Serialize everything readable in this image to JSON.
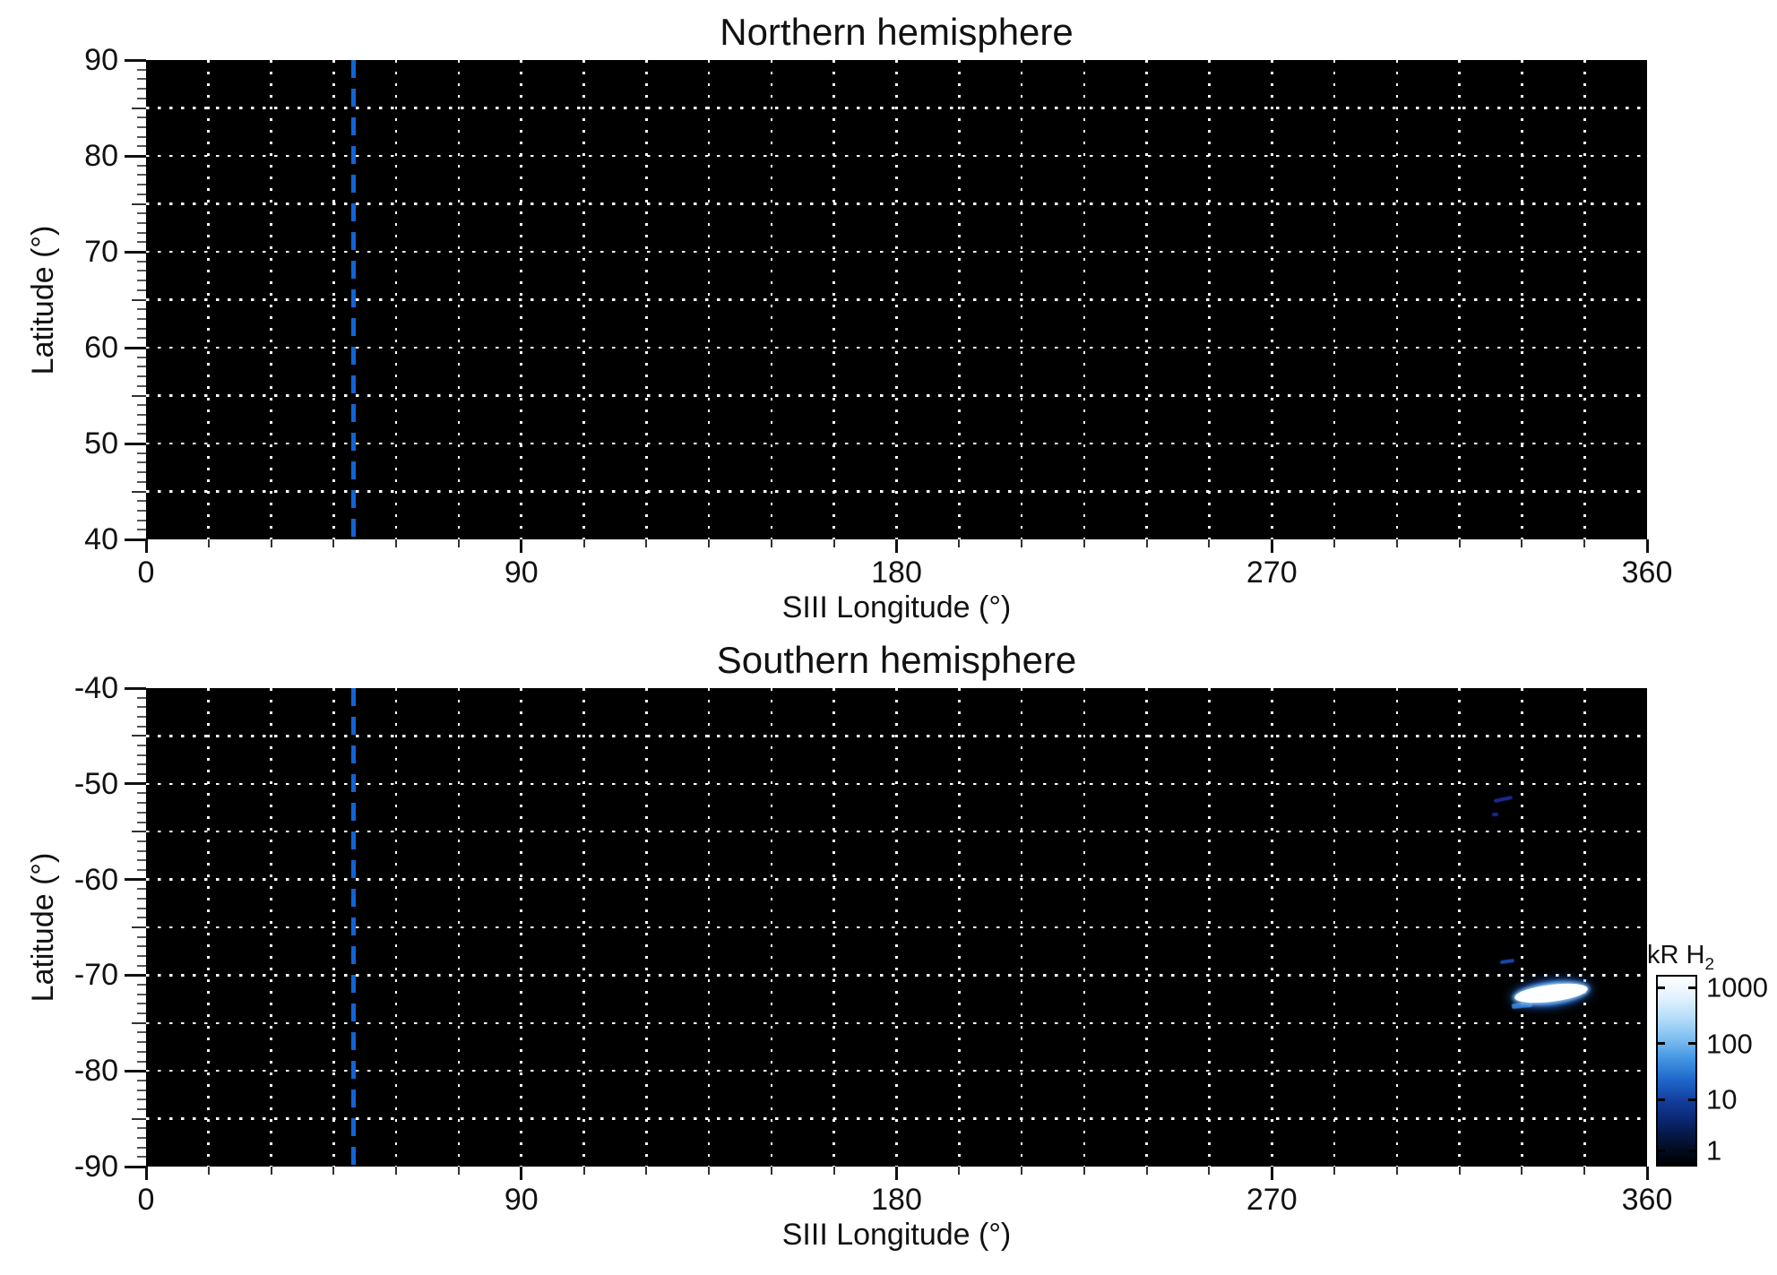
{
  "chart_data": {
    "type": "heatmap",
    "description": "Two-panel polar emission map on black background with white dotted graticule, dashed blue reference meridian, and a logarithmic blue-white intensity colorbar",
    "panels": [
      {
        "title": "Northern hemisphere",
        "xlabel": "SIII Longitude (°)",
        "ylabel": "Latitude (°)",
        "xlim": [
          0,
          360
        ],
        "ylim": [
          40,
          90
        ],
        "xticks": [
          0,
          90,
          180,
          270,
          360
        ],
        "yticks": [
          90,
          80,
          70,
          60,
          50,
          40
        ],
        "grid": {
          "lon_step_deg": 15,
          "lat_step_deg": 5,
          "style": "dotted",
          "color": "#ffffff"
        },
        "background": "#000000",
        "background_value_kR": 0,
        "reference_line": {
          "longitude_deg": 49.7,
          "style": "dashed",
          "color": "#1263d4"
        },
        "features": []
      },
      {
        "title": "Southern hemisphere",
        "xlabel": "SIII Longitude (°)",
        "ylabel": "Latitude (°)",
        "xlim": [
          0,
          360
        ],
        "ylim": [
          -90,
          -40
        ],
        "xticks": [
          0,
          90,
          180,
          270,
          360
        ],
        "yticks": [
          -40,
          -50,
          -60,
          -70,
          -80,
          -90
        ],
        "grid": {
          "lon_step_deg": 15,
          "lat_step_deg": 5,
          "style": "dotted",
          "color": "#ffffff"
        },
        "background": "#000000",
        "background_value_kR": 0,
        "reference_line": {
          "longitude_deg": 49.7,
          "style": "dashed",
          "color": "#1263d4"
        },
        "features": [
          {
            "name": "main auroral arc",
            "kind": "bright-arc",
            "lon_deg": 337.0,
            "lat_deg": -71.9,
            "lon_extent_deg": 19.5,
            "lat_extent_deg": 3.2,
            "rotation_deg": -7,
            "peak_kR": 1000
          },
          {
            "name": "arc lower-left blue tail",
            "kind": "faint-streak",
            "lon_deg": 330.0,
            "lat_deg": -73.2,
            "lon_extent_deg": 5.0,
            "lat_extent_deg": 0.6,
            "rotation_deg": -6,
            "color": "#3f8fe0"
          },
          {
            "name": "faint streak above arc",
            "kind": "faint-streak",
            "lon_deg": 326.5,
            "lat_deg": -68.6,
            "lon_extent_deg": 3.5,
            "lat_extent_deg": 0.4,
            "rotation_deg": -8,
            "color": "#1a50c0"
          },
          {
            "name": "faint emission patch a",
            "kind": "faint-streak",
            "lon_deg": 325.5,
            "lat_deg": -51.6,
            "lon_extent_deg": 4.5,
            "lat_extent_deg": 0.4,
            "rotation_deg": -12,
            "color": "#1e2fa8"
          },
          {
            "name": "faint emission patch b",
            "kind": "faint-streak",
            "lon_deg": 323.6,
            "lat_deg": -53.2,
            "lon_extent_deg": 1.6,
            "lat_extent_deg": 0.35,
            "rotation_deg": 0,
            "color": "#1e2fa8"
          }
        ]
      }
    ],
    "colorbar": {
      "label": "kR H",
      "label_sub": "2",
      "scale": "log",
      "ticks": [
        "1000",
        "100",
        "10",
        "1"
      ],
      "gradient_top_to_bottom": [
        "#ffffff",
        "#e2f2fe",
        "#b5dcf9",
        "#7cbdf0",
        "#3f92e2",
        "#1e64c8",
        "#123c9a",
        "#0a2368",
        "#03102e",
        "#000000"
      ]
    }
  }
}
